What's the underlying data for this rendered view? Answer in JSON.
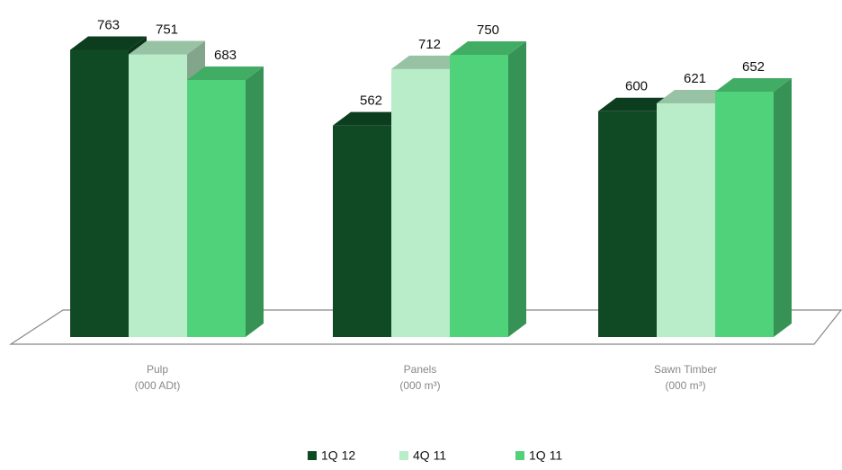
{
  "chart_data": {
    "type": "bar3d",
    "categories": [
      "Pulp",
      "Panels",
      "Sawn Timber"
    ],
    "category_units": [
      "(000 ADt)",
      "(000 m³)",
      "(000 m³)"
    ],
    "series": [
      {
        "name": "1Q 12",
        "color": "#0f4a24",
        "values": [
          763,
          562,
          600
        ]
      },
      {
        "name": "4Q 11",
        "color": "#b9ecc8",
        "values": [
          751,
          712,
          621
        ]
      },
      {
        "name": "1Q 11",
        "color": "#4fd27a",
        "values": [
          683,
          750,
          652
        ]
      }
    ],
    "ylim": [
      0,
      800
    ]
  }
}
